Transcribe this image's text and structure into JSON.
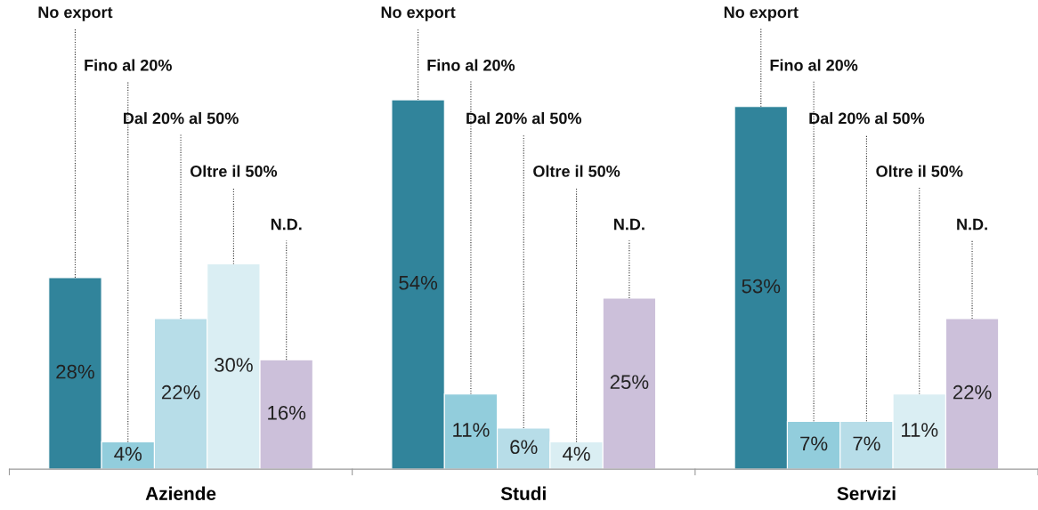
{
  "chart_data": {
    "type": "bar",
    "categories": [
      "Aziende",
      "Studi",
      "Servizi"
    ],
    "series": [
      {
        "name": "No export",
        "color": "#31849b",
        "values": [
          28,
          54,
          53
        ],
        "value_labels": [
          "28%",
          "54%",
          "53%"
        ]
      },
      {
        "name": "Fino al 20%",
        "color": "#92cddc",
        "values": [
          4,
          11,
          7
        ],
        "value_labels": [
          "4%",
          "11%",
          "7%"
        ]
      },
      {
        "name": "Dal 20% al 50%",
        "color": "#b7dde8",
        "values": [
          22,
          6,
          7
        ],
        "value_labels": [
          "22%",
          "6%",
          "7%"
        ]
      },
      {
        "name": "Oltre il 50%",
        "color": "#daeef3",
        "values": [
          30,
          4,
          11
        ],
        "value_labels": [
          "30%",
          "4%",
          "11%"
        ]
      },
      {
        "name": "N.D.",
        "color": "#ccc0da",
        "values": [
          16,
          25,
          22
        ],
        "value_labels": [
          "16%",
          "25%",
          "22%"
        ]
      }
    ]
  }
}
